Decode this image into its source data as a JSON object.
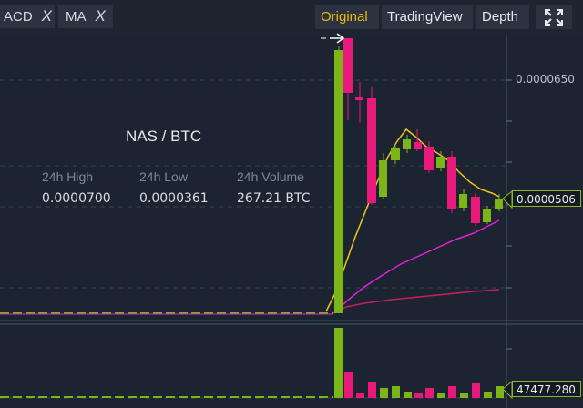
{
  "toolbar": {
    "indicators": [
      {
        "label": "ACD",
        "close": "X"
      },
      {
        "label": "MA",
        "close": "X"
      }
    ],
    "views": [
      "Original",
      "TradingView",
      "Depth"
    ],
    "active_view": "Original"
  },
  "info": {
    "pair": "NAS / BTC",
    "stats": [
      {
        "label": "24h High",
        "value": "0.0000700"
      },
      {
        "label": "24h Low",
        "value": "0.0000361"
      },
      {
        "label": "24h Volume",
        "value": "267.21 BTC"
      }
    ]
  },
  "axis": {
    "price_label": "0.0000650",
    "current_price": "0.0000506",
    "current_volume": "47477.280"
  },
  "colors": {
    "up": "#7cb518",
    "down": "#e8197a",
    "accent": "#f0b90b",
    "ma_short": "#f0c419",
    "ma_mid": "#e620d8",
    "ma_long": "#c81e5e"
  }
}
